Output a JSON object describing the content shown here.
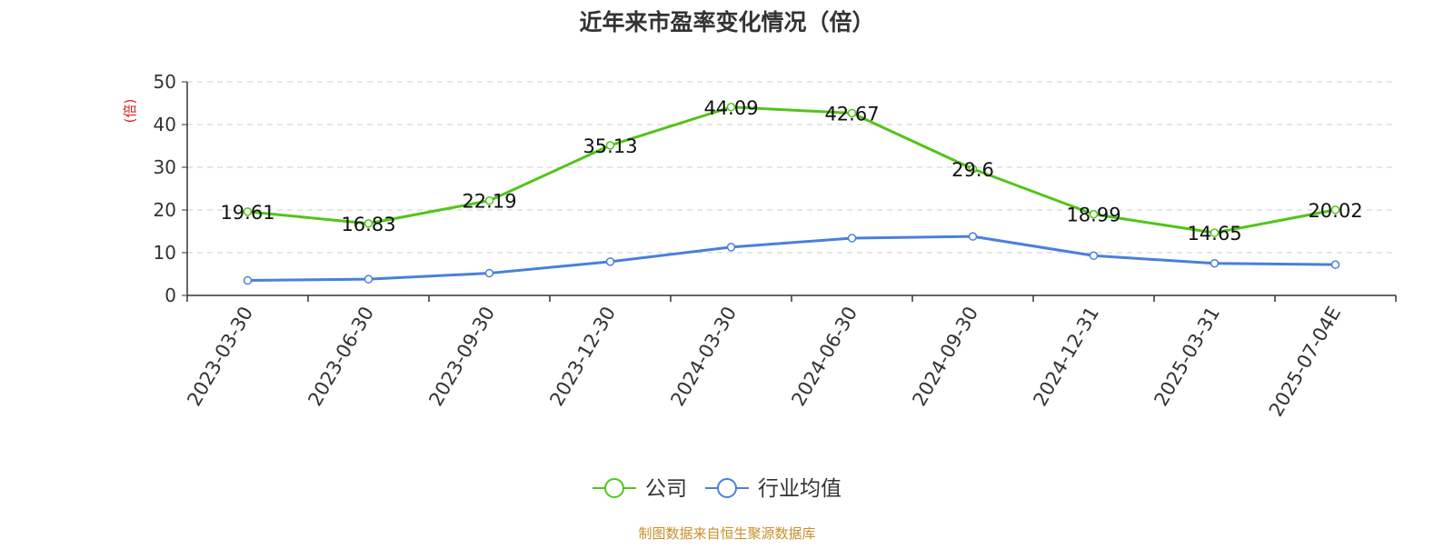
{
  "chart_data": {
    "type": "line",
    "title": "近年来市盈率变化情况（倍）",
    "ylabel": "(倍)",
    "xlabel": "",
    "categories": [
      "2023-03-30",
      "2023-06-30",
      "2023-09-30",
      "2023-12-30",
      "2024-03-30",
      "2024-06-30",
      "2024-09-30",
      "2024-12-31",
      "2025-03-31",
      "2025-07-04E"
    ],
    "ylim": [
      0,
      50
    ],
    "yticks": [
      0,
      10,
      20,
      30,
      40,
      50
    ],
    "grid": true,
    "legend_position": "bottom-center",
    "series": [
      {
        "name": "公司",
        "color": "#52c41a",
        "values": [
          19.61,
          16.83,
          22.19,
          35.13,
          44.09,
          42.67,
          29.6,
          18.99,
          14.65,
          20.02
        ],
        "labels": [
          "19.61",
          "16.83",
          "22.19",
          "35.13",
          "44.09",
          "42.67",
          "29.6",
          "18.99",
          "14.65",
          "20.02"
        ]
      },
      {
        "name": "行业均值",
        "color": "#4a7fdc",
        "values": [
          3.5,
          3.8,
          5.2,
          7.9,
          11.3,
          13.4,
          13.8,
          9.3,
          7.5,
          7.2
        ],
        "labels": []
      }
    ]
  },
  "footer": {
    "source": "制图数据来自恒生聚源数据库"
  },
  "colors": {
    "ylabel": "#e02020",
    "footer": "#c8902a",
    "axis": "#333333",
    "grid": "#cccccc"
  }
}
